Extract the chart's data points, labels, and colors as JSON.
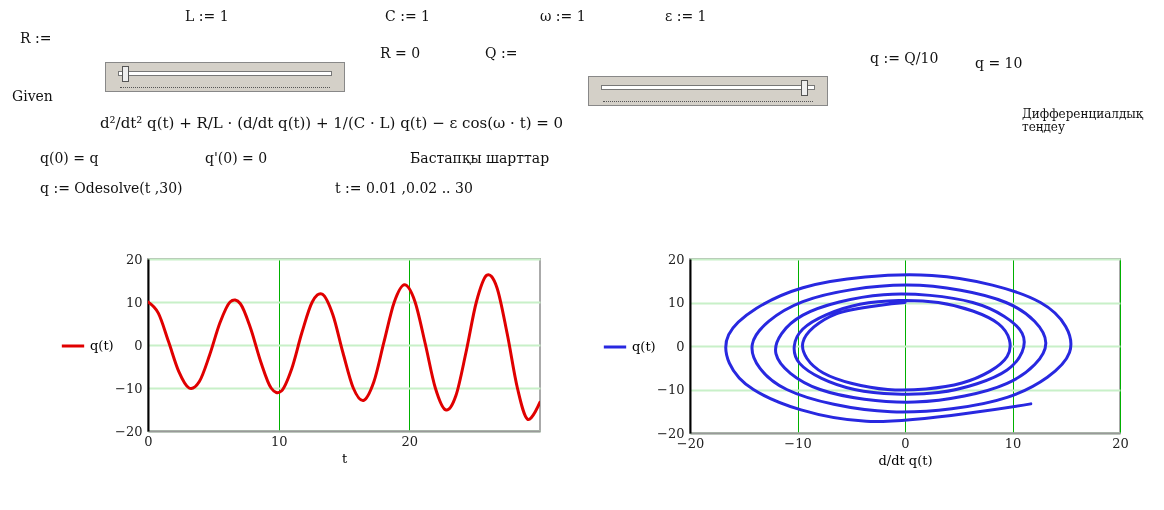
{
  "chart_data": [
    {
      "type": "other",
      "annotations": [
        "L := 1",
        "C := 1",
        "ω := 1",
        "ε := 1",
        "R :=",
        "R = 0",
        "Q :=",
        "q := Q/10",
        "q = 10",
        "Given",
        "d²/dt² q(t) + R/L · (d/dt q(t)) + 1/(C · L) q(t) − ε cos(ω · t) = 0",
        "Дифференциалдық теңдеу",
        "q(0) = q",
        "q'(0) = 0",
        "Бастапқы шарттар",
        "q := Odesolve(t ,30)",
        "t := 0.01 ,0.02 .. 30"
      ]
    },
    {
      "type": "line",
      "xlabel": "t",
      "xlim": [
        0,
        30
      ],
      "xticks": [
        0,
        10,
        20
      ],
      "ylim": [
        -20,
        20
      ],
      "yticks": [
        -20,
        -10,
        0,
        10,
        20
      ],
      "grid": true,
      "legend": "left",
      "series": [
        {
          "name": "q(t)",
          "color": "#e00000",
          "x": [
            0,
            0.79,
            1.57,
            2.36,
            3.14,
            3.93,
            4.71,
            5.5,
            6.28,
            7.07,
            7.85,
            8.64,
            9.42,
            10.21,
            11.0,
            11.78,
            12.57,
            13.35,
            14.14,
            14.92,
            15.71,
            16.49,
            17.28,
            18.06,
            18.85,
            19.63,
            20.42,
            21.21,
            21.99,
            22.78,
            23.56,
            24.35,
            25.13,
            25.92,
            26.7,
            27.49,
            28.27,
            29.06,
            30
          ],
          "values": [
            10,
            7.4,
            0.8,
            -6.2,
            -10,
            -8.5,
            -2.4,
            5.1,
            10,
            9.6,
            3.9,
            -4.0,
            -10,
            -10.7,
            -5.5,
            2.9,
            10,
            11.8,
            7.1,
            -1.8,
            -10,
            -12.9,
            -8.6,
            0.7,
            10,
            14.0,
            10.2,
            0.4,
            -10,
            -15.1,
            -11.8,
            -1.5,
            10,
            16.2,
            13.4,
            2.6,
            -10,
            -17.3,
            -13.3
          ]
        }
      ]
    },
    {
      "type": "line",
      "xlabel": "d/dt q(t)",
      "xlim": [
        -20,
        20
      ],
      "xticks": [
        -20,
        -10,
        0,
        10,
        20
      ],
      "ylim": [
        -20,
        20
      ],
      "yticks": [
        -20,
        -10,
        0,
        10,
        20
      ],
      "grid": true,
      "legend": "left",
      "series": [
        {
          "name": "q(t)",
          "color": "#2828e0",
          "x": [
            0,
            -6.4,
            -9.5,
            -7.6,
            -1.6,
            5.3,
            9.5,
            8.7,
            3.1,
            -4.2,
            -9.5,
            -9.8,
            -4.7,
            3.1,
            9.5,
            10.9,
            6.3,
            -2.0,
            -9.5,
            -12.0,
            -7.9,
            0.9,
            9.5,
            13.1,
            9.4,
            0.2,
            -9.5,
            -14.2,
            -11.0,
            -1.3,
            9.5,
            15.3,
            12.6,
            2.5,
            -9.5,
            -16.4,
            -14.1,
            -3.6,
            11.7
          ],
          "values": [
            10,
            7.4,
            0.8,
            -6.2,
            -10,
            -8.5,
            -2.4,
            5.1,
            10,
            9.6,
            3.9,
            -4.0,
            -10,
            -10.7,
            -5.5,
            2.9,
            10,
            11.8,
            7.1,
            -1.8,
            -10,
            -12.9,
            -8.6,
            0.7,
            10,
            14.0,
            10.2,
            0.4,
            -10,
            -15.1,
            -11.8,
            -1.5,
            10,
            16.2,
            13.4,
            2.6,
            -10,
            -17.3,
            -13.3
          ]
        }
      ]
    }
  ]
}
